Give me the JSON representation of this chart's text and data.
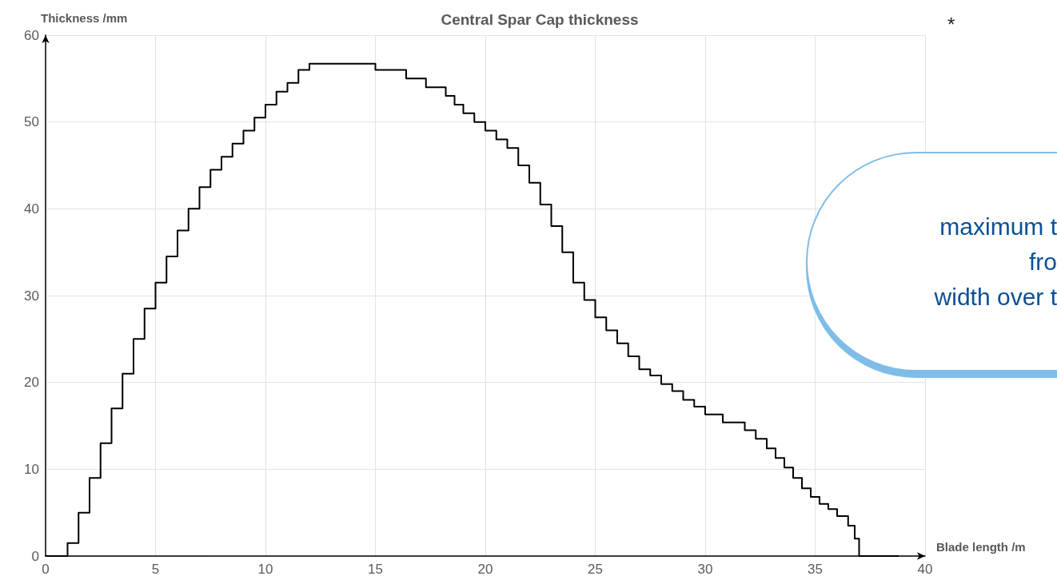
{
  "chart_data": {
    "type": "step",
    "title": "Central Spar Cap thickness",
    "xlabel": "Blade length /m",
    "ylabel": "Thickness /mm",
    "x": [
      0,
      0.9,
      1,
      1.5,
      2,
      2.5,
      3,
      3.5,
      4,
      4.5,
      5,
      5.5,
      6,
      6.5,
      7,
      7.5,
      8,
      8.5,
      9,
      9.5,
      10,
      10.5,
      11,
      11.5,
      12,
      15,
      16.4,
      17.3,
      18.2,
      18.6,
      19,
      19.5,
      20,
      20.5,
      21,
      21.5,
      22,
      22.5,
      23,
      23.5,
      24,
      24.5,
      25,
      25.5,
      26,
      26.5,
      27,
      27.5,
      28,
      28.5,
      29,
      29.5,
      30,
      30.8,
      31.8,
      32.3,
      32.8,
      33.2,
      33.6,
      34,
      34.4,
      34.8,
      35.2,
      35.6,
      36,
      36.5,
      36.8,
      37,
      38.8
    ],
    "values": [
      0,
      0,
      1.5,
      5,
      9,
      13,
      17,
      21,
      25,
      28.5,
      31.5,
      34.5,
      37.5,
      40,
      42.5,
      44.5,
      46,
      47.5,
      49,
      50.5,
      52,
      53.5,
      54.5,
      56,
      56.7,
      56,
      55,
      54,
      53,
      52,
      51,
      50,
      49,
      48,
      47,
      45,
      43,
      40.5,
      38,
      35,
      31.5,
      29.5,
      27.5,
      26,
      24.5,
      23,
      21.5,
      20.8,
      19.8,
      19,
      18,
      17.2,
      16.3,
      15.4,
      14.5,
      13.5,
      12.4,
      11.3,
      10.2,
      9,
      7.8,
      6.8,
      6,
      5.4,
      4.6,
      3.5,
      2,
      0,
      0
    ],
    "color": "#000000",
    "xlim": [
      0,
      40
    ],
    "xticks": [
      0,
      5,
      10,
      15,
      20,
      25,
      30,
      35,
      40
    ],
    "ylim": [
      0,
      60
    ],
    "yticks": [
      0,
      10,
      20,
      30,
      40,
      50,
      60
    ],
    "grid": true,
    "marker": "none",
    "annotations": [
      "*",
      "maximum t",
      "fro",
      "width over t"
    ]
  }
}
